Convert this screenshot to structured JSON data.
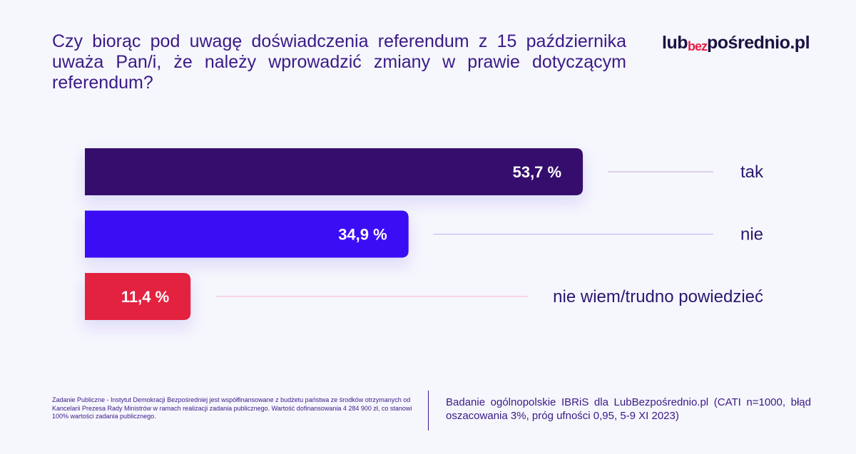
{
  "title": "Czy biorąc pod uwagę doświadczenia referendum z 15 października uważa Pan/i, że należy wprowadzić zmiany w prawie dotyczącym referendum?",
  "logo": {
    "part1": "lub",
    "part2": "bez",
    "part3": "pośrednio.pl"
  },
  "footer": {
    "left": "Zadanie Publiczne - Instytut Demokracji Bezpośredniej jest współfinansowane z budżetu państwa ze środków otrzymanych od Kancelarii Prezesa Rady Ministrów w ramach realizacji zadania publicznego. Wartość dofinansowania 4 284 900 zł, co stanowi 100% wartości zadania publicznego.",
    "right": "Badanie ogólnopolskie IBRiS dla LubBezpośrednio.pl (CATI n=1000, błąd oszacowania 3%, próg ufności 0,95, 5-9 XI 2023)"
  },
  "chart_data": {
    "type": "bar",
    "orientation": "horizontal",
    "categories": [
      "tak",
      "nie",
      "nie wiem/trudno powiedzieć"
    ],
    "values": [
      53.7,
      34.9,
      11.4
    ],
    "value_labels": [
      "53,7 %",
      "34,9 %",
      "11,4 %"
    ],
    "colors": [
      "#360a6c",
      "#3b0cf5",
      "#e3213f"
    ],
    "xlim": [
      0,
      100
    ],
    "grid": false,
    "legend": "none"
  }
}
